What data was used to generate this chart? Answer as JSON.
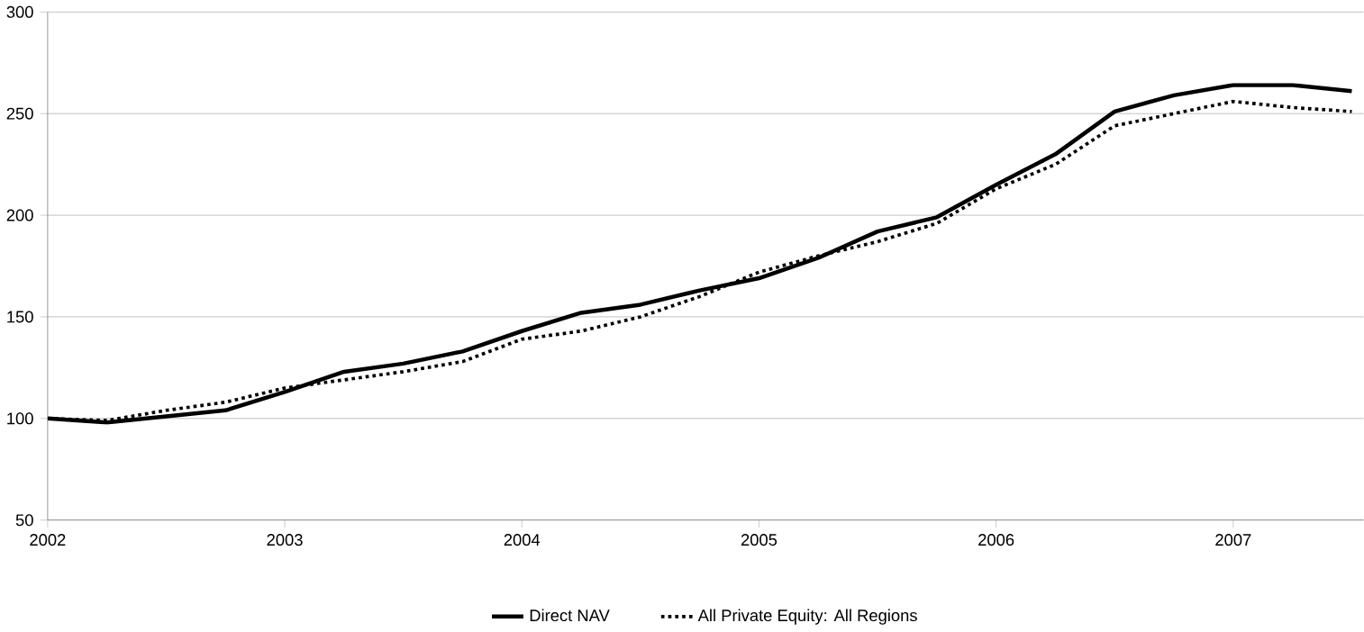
{
  "chart_data": {
    "type": "line",
    "x": [
      2002.0,
      2002.25,
      2002.5,
      2002.75,
      2003.0,
      2003.25,
      2003.5,
      2003.75,
      2004.0,
      2004.25,
      2004.5,
      2004.75,
      2005.0,
      2005.25,
      2005.5,
      2005.75,
      2006.0,
      2006.25,
      2006.5,
      2006.75,
      2007.0,
      2007.25,
      2007.5
    ],
    "series": [
      {
        "name": "Direct NAV",
        "color": "#000000",
        "line_style": "solid",
        "values": [
          100,
          98,
          101,
          104,
          113,
          123,
          127,
          133,
          143,
          152,
          156,
          163,
          169,
          179,
          192,
          199,
          215,
          230,
          251,
          259,
          264,
          264,
          261
        ]
      },
      {
        "name": "All Private Equity: All Regions",
        "color": "#000000",
        "line_style": "dotted",
        "values": [
          100,
          99,
          104,
          108,
          115,
          119,
          123,
          128,
          139,
          143,
          150,
          160,
          172,
          180,
          187,
          196,
          213,
          225,
          244,
          250,
          256,
          253,
          251
        ]
      }
    ],
    "xlim": [
      2002,
      2007.55
    ],
    "xticks": [
      2002,
      2003,
      2004,
      2005,
      2006,
      2007
    ],
    "ylim": [
      50,
      300
    ],
    "yticks": [
      50,
      100,
      150,
      200,
      250,
      300
    ],
    "grid": "y",
    "legend": "bottom",
    "marker": "none"
  }
}
